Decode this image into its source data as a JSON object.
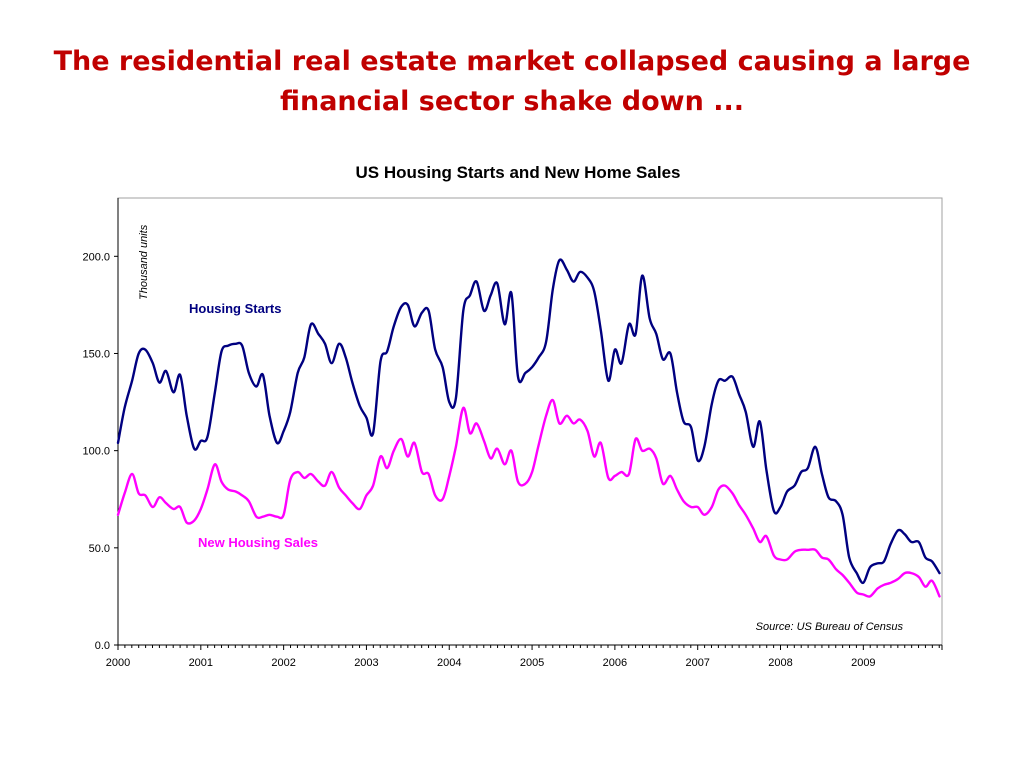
{
  "slide": {
    "title_line1": "The residential real estate market collapsed causing a large",
    "title_line2": "financial sector shake down ..."
  },
  "chart_data": {
    "type": "line",
    "title": "US Housing Starts and New Home Sales",
    "ylabel": "Thousand units",
    "source": "Source: US Bureau of Census",
    "xlim": [
      2000.0,
      2009.95
    ],
    "ylim": [
      0,
      230
    ],
    "y_ticks": [
      0,
      50,
      100,
      150,
      200
    ],
    "y_tick_labels": [
      "0.0",
      "50.0",
      "100.0",
      "150.0",
      "200.0"
    ],
    "x_ticks": [
      2000,
      2001,
      2002,
      2003,
      2004,
      2005,
      2006,
      2007,
      2008,
      2009
    ],
    "x_tick_labels": [
      "2000",
      "2001",
      "2002",
      "2003",
      "2004",
      "2005",
      "2006",
      "2007",
      "2008",
      "2009"
    ],
    "grid": false,
    "series": [
      {
        "name": "Housing Starts",
        "color": "#000080",
        "points": [
          [
            2000.0,
            104
          ],
          [
            2000.08,
            122
          ],
          [
            2000.17,
            136
          ],
          [
            2000.25,
            150
          ],
          [
            2000.33,
            152
          ],
          [
            2000.42,
            145
          ],
          [
            2000.5,
            135
          ],
          [
            2000.58,
            141
          ],
          [
            2000.67,
            130
          ],
          [
            2000.75,
            139
          ],
          [
            2000.83,
            118
          ],
          [
            2000.92,
            101
          ],
          [
            2001.0,
            105
          ],
          [
            2001.08,
            107
          ],
          [
            2001.17,
            130
          ],
          [
            2001.25,
            151
          ],
          [
            2001.33,
            154
          ],
          [
            2001.42,
            155
          ],
          [
            2001.5,
            154
          ],
          [
            2001.58,
            140
          ],
          [
            2001.67,
            133
          ],
          [
            2001.75,
            139
          ],
          [
            2001.83,
            118
          ],
          [
            2001.92,
            104
          ],
          [
            2002.0,
            110
          ],
          [
            2002.08,
            120
          ],
          [
            2002.17,
            140
          ],
          [
            2002.25,
            148
          ],
          [
            2002.33,
            165
          ],
          [
            2002.42,
            160
          ],
          [
            2002.5,
            155
          ],
          [
            2002.58,
            145
          ],
          [
            2002.67,
            155
          ],
          [
            2002.75,
            148
          ],
          [
            2002.83,
            135
          ],
          [
            2002.92,
            123
          ],
          [
            2003.0,
            117
          ],
          [
            2003.08,
            109
          ],
          [
            2003.17,
            146
          ],
          [
            2003.25,
            151
          ],
          [
            2003.33,
            164
          ],
          [
            2003.42,
            174
          ],
          [
            2003.5,
            175
          ],
          [
            2003.58,
            164
          ],
          [
            2003.67,
            171
          ],
          [
            2003.75,
            172
          ],
          [
            2003.83,
            152
          ],
          [
            2003.92,
            143
          ],
          [
            2004.0,
            125
          ],
          [
            2004.08,
            127
          ],
          [
            2004.17,
            172
          ],
          [
            2004.25,
            180
          ],
          [
            2004.33,
            187
          ],
          [
            2004.42,
            172
          ],
          [
            2004.5,
            180
          ],
          [
            2004.58,
            186
          ],
          [
            2004.67,
            165
          ],
          [
            2004.75,
            181
          ],
          [
            2004.83,
            138
          ],
          [
            2004.92,
            140
          ],
          [
            2005.0,
            143
          ],
          [
            2005.08,
            148
          ],
          [
            2005.17,
            156
          ],
          [
            2005.25,
            183
          ],
          [
            2005.33,
            198
          ],
          [
            2005.42,
            193
          ],
          [
            2005.5,
            187
          ],
          [
            2005.58,
            192
          ],
          [
            2005.67,
            189
          ],
          [
            2005.75,
            182
          ],
          [
            2005.83,
            162
          ],
          [
            2005.92,
            136
          ],
          [
            2006.0,
            152
          ],
          [
            2006.08,
            145
          ],
          [
            2006.17,
            165
          ],
          [
            2006.25,
            160
          ],
          [
            2006.33,
            190
          ],
          [
            2006.42,
            168
          ],
          [
            2006.5,
            160
          ],
          [
            2006.58,
            147
          ],
          [
            2006.67,
            150
          ],
          [
            2006.75,
            130
          ],
          [
            2006.83,
            115
          ],
          [
            2006.92,
            112
          ],
          [
            2007.0,
            95
          ],
          [
            2007.08,
            102
          ],
          [
            2007.17,
            124
          ],
          [
            2007.25,
            136
          ],
          [
            2007.33,
            136
          ],
          [
            2007.42,
            138
          ],
          [
            2007.5,
            129
          ],
          [
            2007.58,
            120
          ],
          [
            2007.67,
            102
          ],
          [
            2007.75,
            115
          ],
          [
            2007.83,
            90
          ],
          [
            2007.92,
            69
          ],
          [
            2008.0,
            71
          ],
          [
            2008.08,
            79
          ],
          [
            2008.17,
            82
          ],
          [
            2008.25,
            89
          ],
          [
            2008.33,
            91
          ],
          [
            2008.42,
            102
          ],
          [
            2008.5,
            88
          ],
          [
            2008.58,
            76
          ],
          [
            2008.67,
            74
          ],
          [
            2008.75,
            67
          ],
          [
            2008.83,
            45
          ],
          [
            2008.92,
            37
          ],
          [
            2009.0,
            32
          ],
          [
            2009.08,
            40
          ],
          [
            2009.17,
            42
          ],
          [
            2009.25,
            43
          ],
          [
            2009.33,
            52
          ],
          [
            2009.42,
            59
          ],
          [
            2009.5,
            57
          ],
          [
            2009.58,
            53
          ],
          [
            2009.67,
            53
          ],
          [
            2009.75,
            45
          ],
          [
            2009.83,
            43
          ],
          [
            2009.92,
            37
          ]
        ]
      },
      {
        "name": "New Housing Sales",
        "color": "#ff00ff",
        "points": [
          [
            2000.0,
            67
          ],
          [
            2000.08,
            78
          ],
          [
            2000.17,
            88
          ],
          [
            2000.25,
            78
          ],
          [
            2000.33,
            77
          ],
          [
            2000.42,
            71
          ],
          [
            2000.5,
            76
          ],
          [
            2000.58,
            73
          ],
          [
            2000.67,
            70
          ],
          [
            2000.75,
            71
          ],
          [
            2000.83,
            63
          ],
          [
            2000.92,
            64
          ],
          [
            2001.0,
            70
          ],
          [
            2001.08,
            80
          ],
          [
            2001.17,
            93
          ],
          [
            2001.25,
            84
          ],
          [
            2001.33,
            80
          ],
          [
            2001.42,
            79
          ],
          [
            2001.5,
            77
          ],
          [
            2001.58,
            74
          ],
          [
            2001.67,
            66
          ],
          [
            2001.75,
            66
          ],
          [
            2001.83,
            67
          ],
          [
            2001.92,
            66
          ],
          [
            2002.0,
            67
          ],
          [
            2002.08,
            85
          ],
          [
            2002.17,
            89
          ],
          [
            2002.25,
            86
          ],
          [
            2002.33,
            88
          ],
          [
            2002.42,
            84
          ],
          [
            2002.5,
            82
          ],
          [
            2002.58,
            89
          ],
          [
            2002.67,
            81
          ],
          [
            2002.75,
            77
          ],
          [
            2002.83,
            73
          ],
          [
            2002.92,
            70
          ],
          [
            2003.0,
            77
          ],
          [
            2003.08,
            82
          ],
          [
            2003.17,
            97
          ],
          [
            2003.25,
            91
          ],
          [
            2003.33,
            100
          ],
          [
            2003.42,
            106
          ],
          [
            2003.5,
            97
          ],
          [
            2003.58,
            104
          ],
          [
            2003.67,
            89
          ],
          [
            2003.75,
            88
          ],
          [
            2003.83,
            77
          ],
          [
            2003.92,
            75
          ],
          [
            2004.0,
            87
          ],
          [
            2004.08,
            102
          ],
          [
            2004.17,
            122
          ],
          [
            2004.25,
            109
          ],
          [
            2004.33,
            114
          ],
          [
            2004.42,
            105
          ],
          [
            2004.5,
            96
          ],
          [
            2004.58,
            101
          ],
          [
            2004.67,
            93
          ],
          [
            2004.75,
            100
          ],
          [
            2004.83,
            84
          ],
          [
            2004.92,
            83
          ],
          [
            2005.0,
            89
          ],
          [
            2005.08,
            103
          ],
          [
            2005.17,
            118
          ],
          [
            2005.25,
            126
          ],
          [
            2005.33,
            114
          ],
          [
            2005.42,
            118
          ],
          [
            2005.5,
            114
          ],
          [
            2005.58,
            116
          ],
          [
            2005.67,
            110
          ],
          [
            2005.75,
            97
          ],
          [
            2005.83,
            104
          ],
          [
            2005.92,
            86
          ],
          [
            2006.0,
            87
          ],
          [
            2006.08,
            89
          ],
          [
            2006.17,
            88
          ],
          [
            2006.25,
            106
          ],
          [
            2006.33,
            100
          ],
          [
            2006.42,
            101
          ],
          [
            2006.5,
            96
          ],
          [
            2006.58,
            83
          ],
          [
            2006.67,
            87
          ],
          [
            2006.75,
            80
          ],
          [
            2006.83,
            74
          ],
          [
            2006.92,
            71
          ],
          [
            2007.0,
            71
          ],
          [
            2007.08,
            67
          ],
          [
            2007.17,
            71
          ],
          [
            2007.25,
            80
          ],
          [
            2007.33,
            82
          ],
          [
            2007.42,
            78
          ],
          [
            2007.5,
            72
          ],
          [
            2007.58,
            67
          ],
          [
            2007.67,
            60
          ],
          [
            2007.75,
            53
          ],
          [
            2007.83,
            56
          ],
          [
            2007.92,
            46
          ],
          [
            2008.0,
            44
          ],
          [
            2008.08,
            44
          ],
          [
            2008.17,
            48
          ],
          [
            2008.25,
            49
          ],
          [
            2008.33,
            49
          ],
          [
            2008.42,
            49
          ],
          [
            2008.5,
            45
          ],
          [
            2008.58,
            44
          ],
          [
            2008.67,
            39
          ],
          [
            2008.75,
            36
          ],
          [
            2008.83,
            32
          ],
          [
            2008.92,
            27
          ],
          [
            2009.0,
            26
          ],
          [
            2009.08,
            25
          ],
          [
            2009.17,
            29
          ],
          [
            2009.25,
            31
          ],
          [
            2009.33,
            32
          ],
          [
            2009.42,
            34
          ],
          [
            2009.5,
            37
          ],
          [
            2009.58,
            37
          ],
          [
            2009.67,
            35
          ],
          [
            2009.75,
            30
          ],
          [
            2009.83,
            33
          ],
          [
            2009.92,
            25
          ]
        ]
      }
    ]
  }
}
